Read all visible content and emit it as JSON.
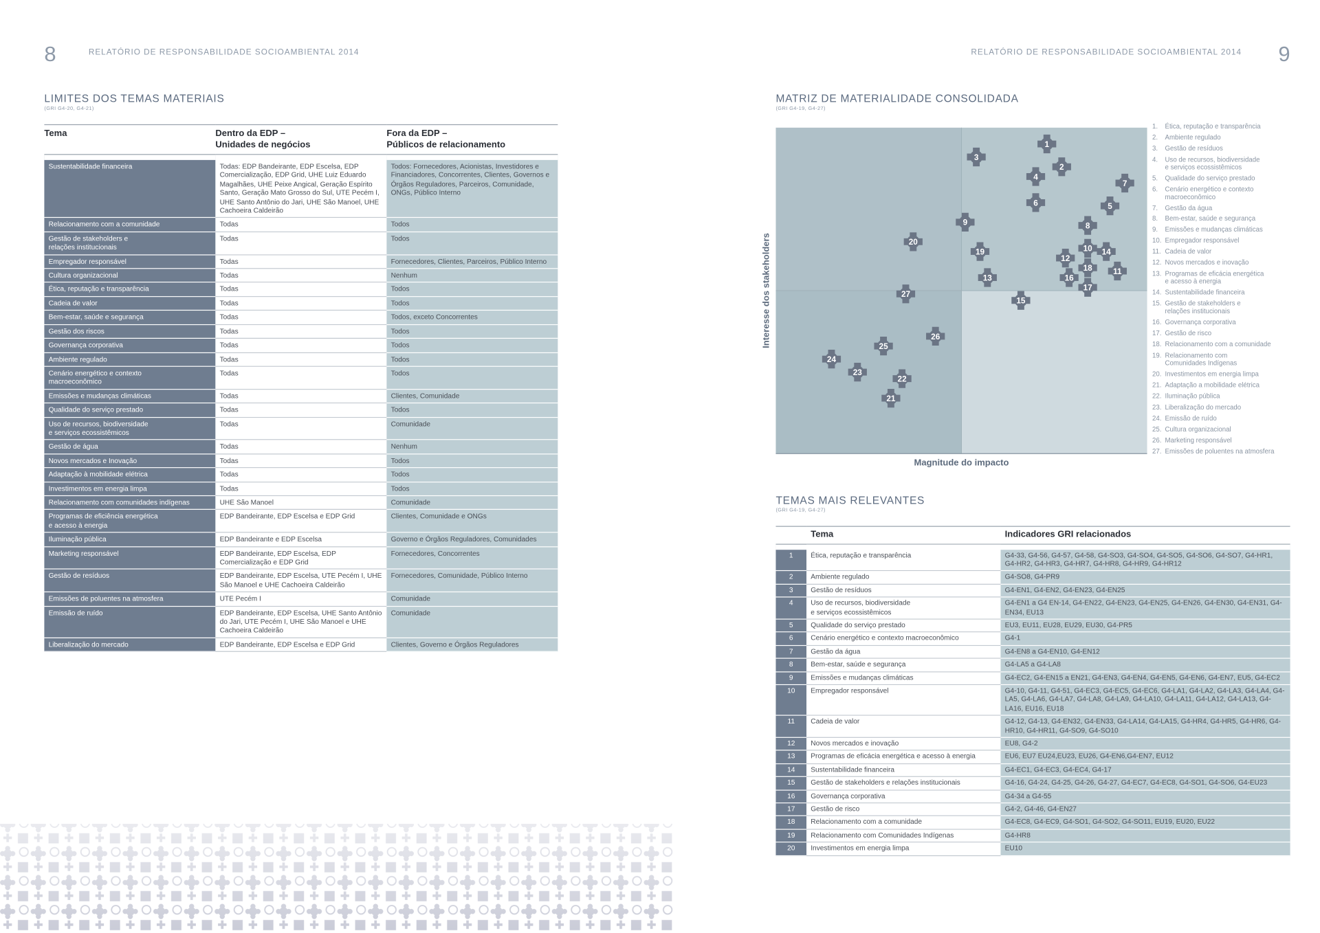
{
  "left_page": {
    "page_number": "8",
    "running_header": "RELATÓRIO DE RESPONSABILIDADE SOCIOAMBIENTAL 2014",
    "section_title": "LIMITES DOS TEMAS MATERIAIS",
    "section_subtitle": "(GRI G4-20, G4-21)",
    "table": {
      "headers": [
        "Tema",
        "Dentro da EDP –\nUnidades de negócios",
        "Fora da EDP –\nPúblicos de relacionamento"
      ],
      "rows": [
        [
          "Sustentabilidade financeira",
          "Todas: EDP Bandeirante, EDP Escelsa, EDP Comercialização, EDP Grid, UHE Luiz Eduardo Magalhães, UHE Peixe Angical, Geração Espírito Santo, Geração Mato Grosso do Sul, UTE Pecém I, UHE Santo Antônio do Jari, UHE São Manoel, UHE Cachoeira Caldeirão",
          "Todos: Fornecedores, Acionistas, Investidores e Financiadores, Concorrentes, Clientes, Governos e Órgãos Reguladores, Parceiros, Comunidade, ONGs, Público Interno"
        ],
        [
          "Relacionamento com a comunidade",
          "Todas",
          "Todos"
        ],
        [
          "Gestão de stakeholders e\nrelações institucionais",
          "Todas",
          "Todos"
        ],
        [
          "Empregador responsável",
          "Todas",
          "Fornecedores, Clientes, Parceiros, Público Interno"
        ],
        [
          "Cultura organizacional",
          "Todas",
          "Nenhum"
        ],
        [
          "Ética, reputação e transparência",
          "Todas",
          "Todos"
        ],
        [
          "Cadeia de valor",
          "Todas",
          "Todos"
        ],
        [
          "Bem-estar, saúde e segurança",
          "Todas",
          "Todos, exceto Concorrentes"
        ],
        [
          "Gestão dos riscos",
          "Todas",
          "Todos"
        ],
        [
          "Governança corporativa",
          "Todas",
          "Todos"
        ],
        [
          "Ambiente regulado",
          "Todas",
          "Todos"
        ],
        [
          "Cenário energético e contexto\nmacroeconômico",
          "Todas",
          "Todos"
        ],
        [
          "Emissões e mudanças climáticas",
          "Todas",
          "Clientes, Comunidade"
        ],
        [
          "Qualidade do serviço prestado",
          "Todas",
          "Todos"
        ],
        [
          "Uso de recursos, biodiversidade\ne serviços ecossistêmicos",
          "Todas",
          "Comunidade"
        ],
        [
          "Gestão de água",
          "Todas",
          "Nenhum"
        ],
        [
          "Novos mercados e Inovação",
          "Todas",
          "Todos"
        ],
        [
          "Adaptação à mobilidade elétrica",
          "Todas",
          "Todos"
        ],
        [
          "Investimentos em energia limpa",
          "Todas",
          "Todos"
        ],
        [
          "Relacionamento com comunidades indígenas",
          "UHE São Manoel",
          "Comunidade"
        ],
        [
          "Programas de eficiência energética\ne acesso à energia",
          "EDP Bandeirante, EDP Escelsa e EDP Grid",
          "Clientes, Comunidade e ONGs"
        ],
        [
          "Iluminação pública",
          "EDP Bandeirante e EDP Escelsa",
          "Governo e Órgãos Reguladores, Comunidades"
        ],
        [
          "Marketing responsável",
          "EDP Bandeirante, EDP Escelsa, EDP Comercialização e EDP Grid",
          "Fornecedores, Concorrentes"
        ],
        [
          "Gestão de resíduos",
          "EDP Bandeirante, EDP Escelsa, UTE Pecém I, UHE São Manoel e UHE Cachoeira Caldeirão",
          "Fornecedores, Comunidade, Público Interno"
        ],
        [
          "Emissões de poluentes na atmosfera",
          "UTE Pecém I",
          "Comunidade"
        ],
        [
          "Emissão de ruído",
          "EDP Bandeirante, EDP Escelsa, UHE Santo Antônio do Jari, UTE Pecém I, UHE São Manoel e UHE Cachoeira Caldeirão",
          "Comunidade"
        ],
        [
          "Liberalização do mercado",
          "EDP Bandeirante, EDP Escelsa e EDP Grid",
          "Clientes, Governo e Órgãos Reguladores"
        ]
      ]
    }
  },
  "right_page": {
    "page_number": "9",
    "running_header": "RELATÓRIO DE RESPONSABILIDADE SOCIOAMBIENTAL 2014",
    "matrix_title": "MATRIZ DE MATERIALIDADE CONSOLIDADA",
    "matrix_subtitle": "(GRI G4-19, G4-27)",
    "legend": [
      {
        "number": "1.",
        "text": "Ética, reputação e transparência"
      },
      {
        "number": "2.",
        "text": "Ambiente regulado"
      },
      {
        "number": "3.",
        "text": "Gestão de resíduos"
      },
      {
        "number": "4.",
        "text": "Uso de recursos, biodiversidade\ne serviços ecossistêmicos"
      },
      {
        "number": "5.",
        "text": "Qualidade do serviço prestado"
      },
      {
        "number": "6.",
        "text": "Cenário energético e contexto\nmacroeconômico"
      },
      {
        "number": "7.",
        "text": "Gestão da água"
      },
      {
        "number": "8.",
        "text": "Bem-estar, saúde e segurança"
      },
      {
        "number": "9.",
        "text": "Emissões e mudanças climáticas"
      },
      {
        "number": "10.",
        "text": "Empregador responsável"
      },
      {
        "number": "11.",
        "text": "Cadeia de valor"
      },
      {
        "number": "12.",
        "text": "Novos mercados e inovação"
      },
      {
        "number": "13.",
        "text": "Programas de eficácia energética\ne acesso à energia"
      },
      {
        "number": "14.",
        "text": "Sustentabilidade financeira"
      },
      {
        "number": "15.",
        "text": "Gestão de stakeholders e\nrelações institucionais"
      },
      {
        "number": "16.",
        "text": "Governança corporativa"
      },
      {
        "number": "17.",
        "text": "Gestão de risco"
      },
      {
        "number": "18.",
        "text": "Relacionamento com a comunidade"
      },
      {
        "number": "19.",
        "text": "Relacionamento com\nComunidades Indígenas"
      },
      {
        "number": "20.",
        "text": "Investimentos em energia limpa"
      },
      {
        "number": "21.",
        "text": "Adaptação a mobilidade elétrica"
      },
      {
        "number": "22.",
        "text": "Iluminação pública"
      },
      {
        "number": "23.",
        "text": "Liberalização do mercado"
      },
      {
        "number": "24.",
        "text": "Emissão de ruído"
      },
      {
        "number": "25.",
        "text": "Cultura organizacional"
      },
      {
        "number": "26.",
        "text": "Marketing responsável"
      },
      {
        "number": "27.",
        "text": "Emissões de poluentes na atmosfera"
      }
    ],
    "table_title": "TEMAS MAIS RELEVANTES",
    "table_subtitle": "(GRI G4-19, G4-27)",
    "table": {
      "headers": [
        "Tema",
        "Indicadores GRI relacionados"
      ],
      "rows": [
        [
          1,
          "Ética, reputação e transparência",
          "G4-33, G4-56, G4-57, G4-58, G4-SO3, G4-SO4, G4-SO5, G4-SO6, G4-SO7, G4-HR1, G4-HR2, G4-HR3, G4-HR7, G4-HR8, G4-HR9, G4-HR12"
        ],
        [
          2,
          "Ambiente regulado",
          "G4-SO8, G4-PR9"
        ],
        [
          3,
          "Gestão de resíduos",
          "G4-EN1, G4-EN2, G4-EN23, G4-EN25"
        ],
        [
          4,
          "Uso de recursos, biodiversidade\ne serviços ecossistêmicos",
          "G4-EN1 a G4 EN-14, G4-EN22, G4-EN23, G4-EN25, G4-EN26, G4-EN30, G4-EN31, G4-EN34, EU13"
        ],
        [
          5,
          "Qualidade do serviço prestado",
          "EU3, EU11, EU28, EU29, EU30, G4-PR5"
        ],
        [
          6,
          "Cenário energético e contexto macroeconômico",
          "G4-1"
        ],
        [
          7,
          "Gestão da água",
          "G4-EN8 a G4-EN10, G4-EN12"
        ],
        [
          8,
          "Bem-estar, saúde e segurança",
          "G4-LA5 a G4-LA8"
        ],
        [
          9,
          "Emissões e mudanças climáticas",
          "G4-EC2, G4-EN15 a EN21, G4-EN3, G4-EN4, G4-EN5, G4-EN6, G4-EN7, EU5, G4-EC2"
        ],
        [
          10,
          "Empregador responsável",
          "G4-10, G4-11, G4-51, G4-EC3, G4-EC5, G4-EC6, G4-LA1, G4-LA2, G4-LA3, G4-LA4, G4-LA5, G4-LA6, G4-LA7, G4-LA8, G4-LA9, G4-LA10, G4-LA11, G4-LA12, G4-LA13, G4-LA16, EU16, EU18"
        ],
        [
          11,
          "Cadeia de valor",
          "G4-12, G4-13, G4-EN32, G4-EN33, G4-LA14, G4-LA15, G4-HR4, G4-HR5, G4-HR6, G4-HR10, G4-HR11, G4-SO9, G4-SO10"
        ],
        [
          12,
          "Novos mercados e inovação",
          "EU8, G4-2"
        ],
        [
          13,
          "Programas de eficácia energética e acesso à energia",
          "EU6, EU7 EU24,EU23, EU26, G4-EN6,G4-EN7, EU12"
        ],
        [
          14,
          "Sustentabilidade financeira",
          "G4-EC1, G4-EC3, G4-EC4, G4-17"
        ],
        [
          15,
          "Gestão de stakeholders e relações institucionais",
          "G4-16, G4-24, G4-25, G4-26, G4-27, G4-EC7, G4-EC8, G4-SO1, G4-SO6, G4-EU23"
        ],
        [
          16,
          "Governança corporativa",
          "G4-34 a G4-55"
        ],
        [
          17,
          "Gestão de risco",
          "G4-2, G4-46, G4-EN27"
        ],
        [
          18,
          "Relacionamento com a comunidade",
          "G4-EC8, G4-EC9, G4-SO1, G4-SO2, G4-SO11, EU19, EU20, EU22"
        ],
        [
          19,
          "Relacionamento com Comunidades Indígenas",
          "G4-HR8"
        ],
        [
          20,
          "Investimentos em energia limpa",
          "EU10"
        ]
      ]
    }
  },
  "chart_data": {
    "type": "scatter",
    "x_label": "Magnitude do impacto",
    "y_label": "Interesse dos stakeholders",
    "xlim": [
      0,
      100
    ],
    "ylim": [
      0,
      100
    ],
    "color": "#6b7585",
    "labels": [
      "1",
      "2",
      "3",
      "4",
      "5",
      "6",
      "7",
      "8",
      "9",
      "10",
      "11",
      "12",
      "13",
      "14",
      "15",
      "16",
      "17",
      "18",
      "19",
      "20",
      "21",
      "22",
      "23",
      "24",
      "25",
      "26",
      "27"
    ],
    "x": [
      73,
      77,
      54,
      70,
      90,
      70,
      94,
      84,
      51,
      84,
      92,
      78,
      57,
      89,
      66,
      79,
      84,
      84,
      55,
      37,
      31,
      34,
      22,
      15,
      29,
      43,
      35
    ],
    "y": [
      95,
      88,
      91,
      85,
      76,
      77,
      83,
      70,
      71,
      63,
      56,
      60,
      54,
      62,
      47,
      54,
      51,
      57,
      62,
      65,
      17,
      23,
      25,
      29,
      33,
      36,
      49
    ]
  }
}
